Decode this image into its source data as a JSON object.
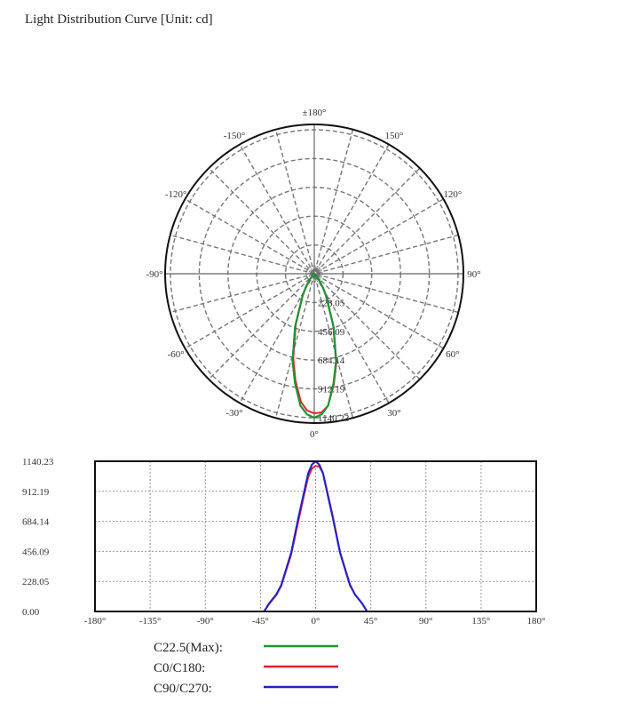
{
  "title": "Light Distribution Curve [Unit: cd]",
  "colors": {
    "c22_5": "#1a9a2a",
    "c0_c180": "#e8202a",
    "c90_c270": "#2020d0",
    "grid": "#777777",
    "frame": "#111111"
  },
  "legend": [
    {
      "name": "C22.5(Max):",
      "color_key": "c22_5"
    },
    {
      "name": "C0/C180:",
      "color_key": "c0_c180"
    },
    {
      "name": "C90/C270:",
      "color_key": "c90_c270"
    }
  ],
  "chart_data": [
    {
      "type": "polar",
      "angle_labels": [
        "±180°",
        "150°",
        "120°",
        "90°",
        "60°",
        "30°",
        "0°",
        "-30°",
        "-60°",
        "-90°",
        "-120°",
        "-150°"
      ],
      "ring_labels": [
        "228.05",
        "456.09",
        "684.14",
        "912.19",
        "1140.23"
      ],
      "rmax": 1140.23,
      "grid": true,
      "series_ref": "line"
    },
    {
      "type": "line",
      "x_tick_labels": [
        "-180°",
        "-135°",
        "-90°",
        "-45°",
        "0°",
        "45°",
        "90°",
        "135°",
        "180°"
      ],
      "y_tick_labels": [
        "1140.23",
        "912.19",
        "684.14",
        "456.09",
        "228.05",
        "0.00"
      ],
      "xlim": [
        -180,
        180
      ],
      "ylim": [
        0,
        1140.23
      ],
      "grid": true,
      "legend_placement": "bottom",
      "series": [
        {
          "name": "C22.5(Max):",
          "x": [
            -90,
            -45,
            -42,
            -38,
            -32,
            -28,
            -20,
            -14,
            -10,
            -6,
            -3,
            0,
            3,
            6,
            10,
            14,
            20,
            28,
            32,
            38,
            42,
            45,
            90
          ],
          "y": [
            0,
            0,
            0,
            60,
            130,
            200,
            444,
            714,
            880,
            1050,
            1115,
            1140,
            1115,
            1050,
            880,
            714,
            444,
            200,
            130,
            60,
            0,
            0,
            0
          ]
        },
        {
          "name": "C0/C180:",
          "x": [
            -90,
            -45,
            -42,
            -38,
            -32,
            -28,
            -20,
            -14,
            -10,
            -6,
            -3,
            0,
            3,
            6,
            10,
            14,
            20,
            28,
            32,
            38,
            42,
            45,
            90
          ],
          "y": [
            0,
            0,
            0,
            55,
            125,
            195,
            430,
            690,
            860,
            1020,
            1085,
            1105,
            1100,
            1050,
            890,
            725,
            450,
            205,
            130,
            60,
            0,
            0,
            0
          ]
        },
        {
          "name": "C90/C270:",
          "x": [
            -90,
            -45,
            -42,
            -38,
            -32,
            -28,
            -20,
            -14,
            -10,
            -6,
            -3,
            0,
            3,
            6,
            10,
            14,
            20,
            28,
            32,
            38,
            42,
            45,
            90
          ],
          "y": [
            0,
            0,
            0,
            60,
            130,
            200,
            444,
            714,
            880,
            1050,
            1115,
            1140,
            1115,
            1050,
            880,
            714,
            444,
            200,
            130,
            60,
            0,
            0,
            0
          ]
        }
      ]
    }
  ]
}
